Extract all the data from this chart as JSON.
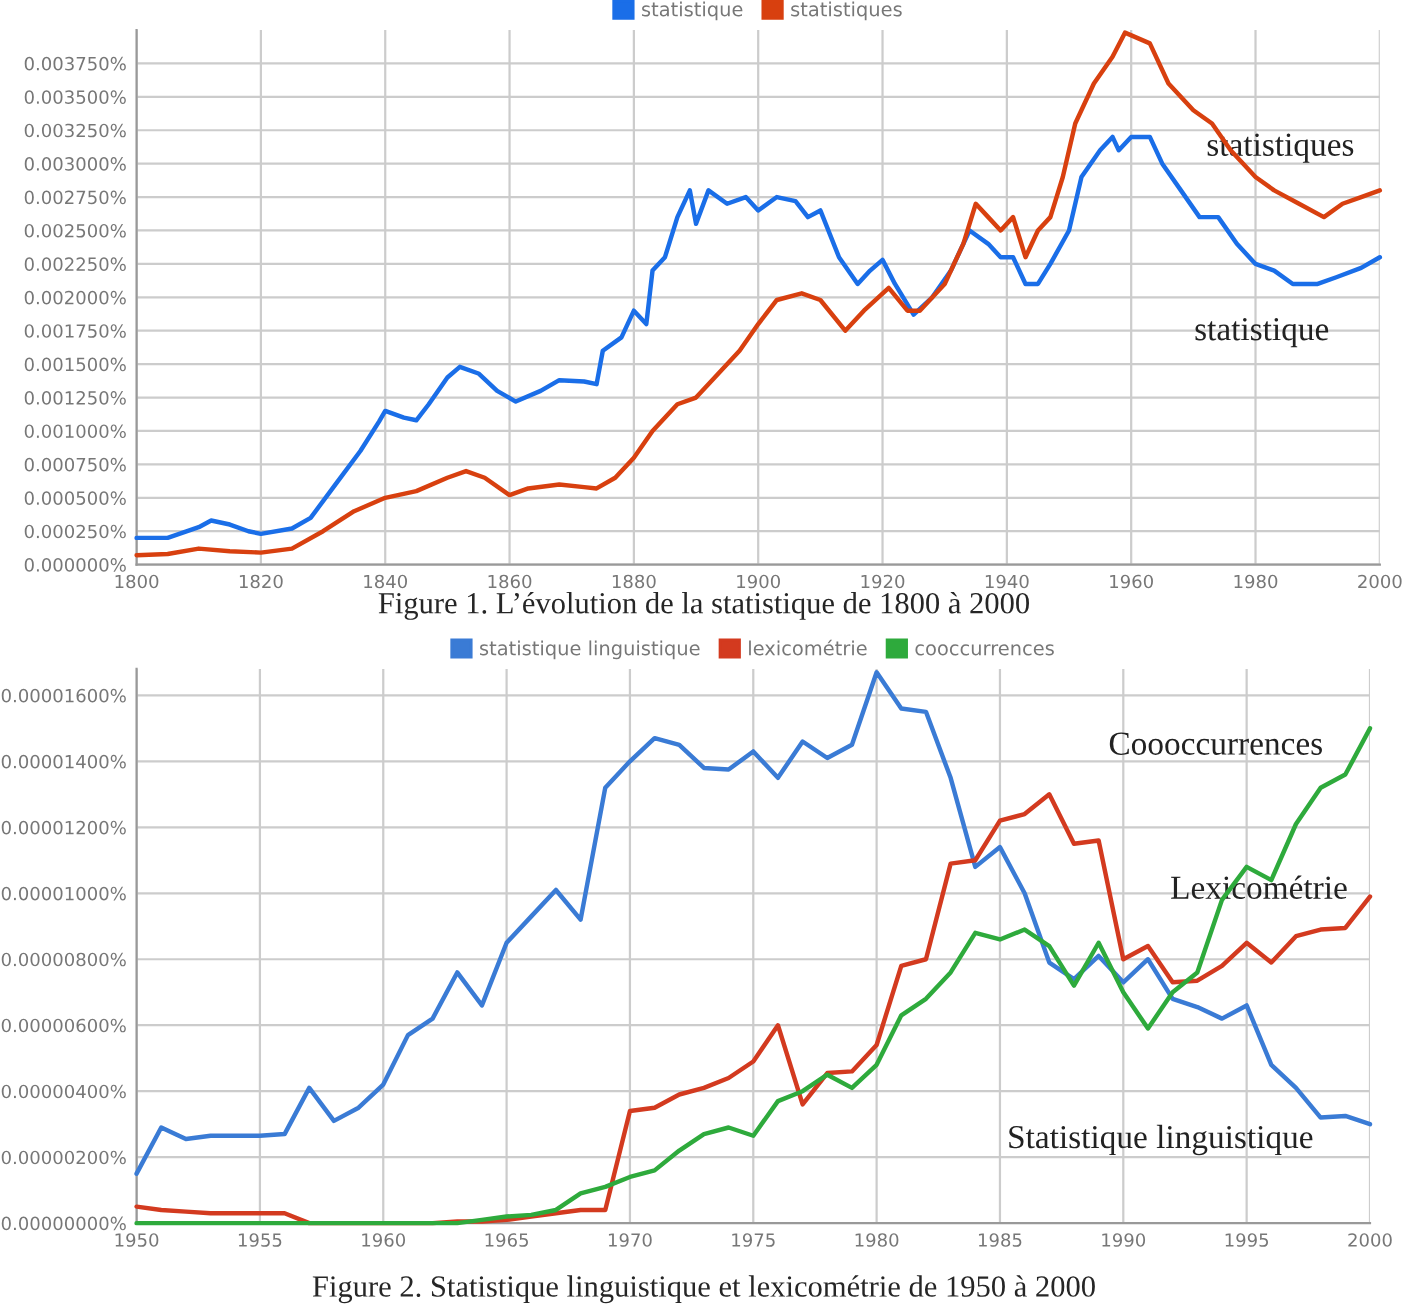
{
  "chart_data": [
    {
      "type": "line",
      "legend": "top",
      "grid": true,
      "marker": "none",
      "line_style": "solid",
      "xlim": [
        1800,
        2000
      ],
      "xticks": [
        1800,
        1820,
        1840,
        1860,
        1880,
        1900,
        1920,
        1940,
        1960,
        1980,
        2000
      ],
      "ylim": [
        0,
        0.004
      ],
      "yticks": [
        {
          "value": 0,
          "label": "0.000000%"
        },
        {
          "value": 0.00025,
          "label": "0.000250%"
        },
        {
          "value": 0.0005,
          "label": "0.000500%"
        },
        {
          "value": 0.00075,
          "label": "0.000750%"
        },
        {
          "value": 0.001,
          "label": "0.001000%"
        },
        {
          "value": 0.00125,
          "label": "0.001250%"
        },
        {
          "value": 0.0015,
          "label": "0.001500%"
        },
        {
          "value": 0.00175,
          "label": "0.001750%"
        },
        {
          "value": 0.002,
          "label": "0.002000%"
        },
        {
          "value": 0.00225,
          "label": "0.002250%"
        },
        {
          "value": 0.0025,
          "label": "0.002500%"
        },
        {
          "value": 0.00275,
          "label": "0.002750%"
        },
        {
          "value": 0.003,
          "label": "0.003000%"
        },
        {
          "value": 0.00325,
          "label": "0.003250%"
        },
        {
          "value": 0.0035,
          "label": "0.003500%"
        },
        {
          "value": 0.00375,
          "label": "0.003750%"
        }
      ],
      "series": [
        {
          "name": "statistique",
          "color": "#1a6ee8",
          "x": [
            1800,
            1805,
            1810,
            1812,
            1815,
            1818,
            1820,
            1825,
            1828,
            1832,
            1836,
            1839,
            1840,
            1843,
            1845,
            1847,
            1850,
            1852,
            1855,
            1858,
            1861,
            1865,
            1868,
            1872,
            1874,
            1875,
            1878,
            1880,
            1882,
            1883,
            1885,
            1887,
            1889,
            1890,
            1892,
            1895,
            1898,
            1900,
            1903,
            1906,
            1908,
            1910,
            1913,
            1916,
            1918,
            1920,
            1922,
            1925,
            1928,
            1931,
            1934,
            1937,
            1939,
            1941,
            1943,
            1945,
            1947,
            1950,
            1952,
            1955,
            1957,
            1958,
            1960,
            1963,
            1965,
            1968,
            1971,
            1974,
            1977,
            1980,
            1983,
            1986,
            1990,
            1993,
            1997,
            2000
          ],
          "values": [
            0.0002,
            0.0002,
            0.00028,
            0.00033,
            0.0003,
            0.00025,
            0.00023,
            0.00027,
            0.00035,
            0.0006,
            0.00085,
            0.00107,
            0.00115,
            0.0011,
            0.00108,
            0.0012,
            0.0014,
            0.00148,
            0.00143,
            0.0013,
            0.00122,
            0.0013,
            0.00138,
            0.00137,
            0.00135,
            0.0016,
            0.0017,
            0.0019,
            0.0018,
            0.0022,
            0.0023,
            0.0026,
            0.0028,
            0.00255,
            0.0028,
            0.0027,
            0.00275,
            0.00265,
            0.00275,
            0.00272,
            0.0026,
            0.00265,
            0.0023,
            0.0021,
            0.0022,
            0.00228,
            0.0021,
            0.00187,
            0.002,
            0.0022,
            0.0025,
            0.0024,
            0.0023,
            0.0023,
            0.0021,
            0.0021,
            0.00225,
            0.0025,
            0.0029,
            0.0031,
            0.0032,
            0.0031,
            0.0032,
            0.0032,
            0.003,
            0.0028,
            0.0026,
            0.0026,
            0.0024,
            0.00225,
            0.0022,
            0.0021,
            0.0021,
            0.00215,
            0.00222,
            0.0023
          ]
        },
        {
          "name": "statistiques",
          "color": "#d8400f",
          "x": [
            1800,
            1805,
            1810,
            1815,
            1820,
            1825,
            1830,
            1835,
            1840,
            1845,
            1850,
            1853,
            1856,
            1860,
            1863,
            1868,
            1872,
            1874,
            1877,
            1880,
            1883,
            1887,
            1890,
            1893,
            1897,
            1900,
            1903,
            1907,
            1910,
            1914,
            1917,
            1921,
            1924,
            1926,
            1930,
            1933,
            1935,
            1937,
            1939,
            1941,
            1943,
            1945,
            1947,
            1949,
            1951,
            1954,
            1957,
            1959,
            1963,
            1966,
            1970,
            1973,
            1976,
            1980,
            1983,
            1987,
            1991,
            1994,
            1997,
            2000
          ],
          "values": [
            7e-05,
            8e-05,
            0.00012,
            0.0001,
            9e-05,
            0.00012,
            0.00025,
            0.0004,
            0.0005,
            0.00055,
            0.00065,
            0.0007,
            0.00065,
            0.00052,
            0.00057,
            0.0006,
            0.00058,
            0.00057,
            0.00065,
            0.0008,
            0.001,
            0.0012,
            0.00125,
            0.0014,
            0.0016,
            0.0018,
            0.00198,
            0.00203,
            0.00198,
            0.00175,
            0.0019,
            0.00207,
            0.0019,
            0.0019,
            0.0021,
            0.0024,
            0.0027,
            0.0026,
            0.0025,
            0.0026,
            0.0023,
            0.0025,
            0.0026,
            0.0029,
            0.0033,
            0.0036,
            0.0038,
            0.00398,
            0.0039,
            0.0036,
            0.0034,
            0.0033,
            0.0031,
            0.0029,
            0.0028,
            0.0027,
            0.0026,
            0.0027,
            0.00275,
            0.0028
          ]
        }
      ],
      "annotations": [
        "statistiques",
        "statistique",
        "Figure 1. L’évolution de la statistique de 1800 à 2000"
      ]
    },
    {
      "type": "line",
      "legend": "top",
      "grid": true,
      "marker": "none",
      "line_style": "solid",
      "xlim": [
        1950,
        2000
      ],
      "xticks": [
        1950,
        1955,
        1960,
        1965,
        1970,
        1975,
        1980,
        1985,
        1990,
        1995,
        2000
      ],
      "ylim": [
        0,
        1.68e-05
      ],
      "yticks": [
        {
          "value": 0,
          "label": "0.00000000%"
        },
        {
          "value": 2e-06,
          "label": "0.00000200%"
        },
        {
          "value": 4e-06,
          "label": "0.00000400%"
        },
        {
          "value": 6e-06,
          "label": "0.00000600%"
        },
        {
          "value": 8e-06,
          "label": "0.00000800%"
        },
        {
          "value": 1e-05,
          "label": "0.00001000%"
        },
        {
          "value": 1.2e-05,
          "label": "0.00001200%"
        },
        {
          "value": 1.4e-05,
          "label": "0.00001400%"
        },
        {
          "value": 1.6e-05,
          "label": "0.00001600%"
        }
      ],
      "x": [
        1950,
        1951,
        1952,
        1953,
        1954,
        1955,
        1956,
        1957,
        1958,
        1959,
        1960,
        1961,
        1962,
        1963,
        1964,
        1965,
        1966,
        1967,
        1968,
        1969,
        1970,
        1971,
        1972,
        1973,
        1974,
        1975,
        1976,
        1977,
        1978,
        1979,
        1980,
        1981,
        1982,
        1983,
        1984,
        1985,
        1986,
        1987,
        1988,
        1989,
        1990,
        1991,
        1992,
        1993,
        1994,
        1995,
        1996,
        1997,
        1998,
        1999,
        2000
      ],
      "series": [
        {
          "name": "statistique linguistique",
          "color": "#3a7bd5",
          "values": [
            1.5e-06,
            2.9e-06,
            2.55e-06,
            2.65e-06,
            2.65e-06,
            2.65e-06,
            2.7e-06,
            4.1e-06,
            3.1e-06,
            3.5e-06,
            4.2e-06,
            5.7e-06,
            6.2e-06,
            7.6e-06,
            6.6e-06,
            8.5e-06,
            9.3e-06,
            1.01e-05,
            9.2e-06,
            1.32e-05,
            1.4e-05,
            1.47e-05,
            1.45e-05,
            1.38e-05,
            1.375e-05,
            1.43e-05,
            1.35e-05,
            1.46e-05,
            1.41e-05,
            1.45e-05,
            1.67e-05,
            1.56e-05,
            1.55e-05,
            1.35e-05,
            1.08e-05,
            1.14e-05,
            1e-05,
            7.9e-06,
            7.4e-06,
            8.1e-06,
            7.3e-06,
            8e-06,
            6.8e-06,
            6.55e-06,
            6.2e-06,
            6.6e-06,
            4.8e-06,
            4.1e-06,
            3.2e-06,
            3.25e-06,
            3e-06
          ]
        },
        {
          "name": "lexicométrie",
          "color": "#d33a1f",
          "values": [
            5e-07,
            4e-07,
            3.5e-07,
            3e-07,
            3e-07,
            3e-07,
            3e-07,
            0,
            0,
            0,
            0,
            0,
            0,
            5e-08,
            5e-08,
            1e-07,
            2e-07,
            3e-07,
            4e-07,
            4e-07,
            3.4e-06,
            3.5e-06,
            3.9e-06,
            4.1e-06,
            4.4e-06,
            4.9e-06,
            6e-06,
            3.6e-06,
            4.55e-06,
            4.6e-06,
            5.4e-06,
            7.8e-06,
            8e-06,
            1.09e-05,
            1.1e-05,
            1.22e-05,
            1.24e-05,
            1.3e-05,
            1.15e-05,
            1.16e-05,
            8e-06,
            8.4e-06,
            7.3e-06,
            7.35e-06,
            7.8e-06,
            8.5e-06,
            7.9e-06,
            8.7e-06,
            8.9e-06,
            8.95e-06,
            9.9e-06
          ]
        },
        {
          "name": "cooccurrences",
          "color": "#2eaa3c",
          "values": [
            0,
            0,
            0,
            0,
            0,
            0,
            0,
            0,
            0,
            0,
            0,
            0,
            0,
            0,
            1e-07,
            2e-07,
            2.5e-07,
            4e-07,
            9e-07,
            1.1e-06,
            1.4e-06,
            1.6e-06,
            2.2e-06,
            2.7e-06,
            2.9e-06,
            2.65e-06,
            3.7e-06,
            4e-06,
            4.5e-06,
            4.1e-06,
            4.8e-06,
            6.3e-06,
            6.8e-06,
            7.6e-06,
            8.8e-06,
            8.6e-06,
            8.9e-06,
            8.4e-06,
            7.2e-06,
            8.5e-06,
            7e-06,
            5.9e-06,
            7e-06,
            7.6e-06,
            9.8e-06,
            1.08e-05,
            1.04e-05,
            1.21e-05,
            1.32e-05,
            1.36e-05,
            1.5e-05
          ]
        }
      ],
      "annotations": [
        "Coooccurrences",
        "Lexicométrie",
        "Statistique linguistique",
        "Figure 2. Statistique linguistique et lexicométrie de 1950 à 2000"
      ]
    }
  ]
}
